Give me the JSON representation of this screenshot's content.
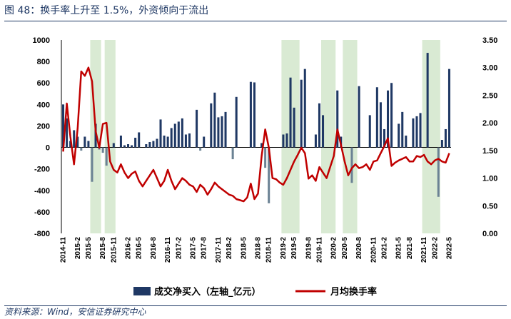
{
  "title": "图 48：换手率上升至 1.5%，外资倾向于流出",
  "source": "资料来源：Wind，安信证券研究中心",
  "colors": {
    "bar": "#1f3864",
    "bar_negative": "#6b8294",
    "line": "#c00000",
    "shade": "#d9ead3",
    "text": "#1f3864"
  },
  "chart_data": {
    "type": "bar+line",
    "x_labels": [
      "2014-11",
      "2015-2",
      "2015-5",
      "2015-8",
      "2015-11",
      "2016-2",
      "2016-5",
      "2016-8",
      "2016-11",
      "2017-2",
      "2017-5",
      "2017-8",
      "2017-11",
      "2018-2",
      "2018-5",
      "2018-8",
      "2018-11",
      "2019-2",
      "2019-5",
      "2019-8",
      "2019-11",
      "2020-2",
      "2020-5",
      "2020-8",
      "2020-11",
      "2021-2",
      "2021-5",
      "2021-8",
      "2021-11",
      "2022-2",
      "2022-5"
    ],
    "y_left": {
      "min": -800,
      "max": 1000,
      "ticks": [
        "-800",
        "-600",
        "-400",
        "-200",
        "0",
        "200",
        "400",
        "600",
        "800",
        "1000"
      ]
    },
    "y_right": {
      "min": 0,
      "max": 3.5,
      "ticks": [
        "0.00",
        "0.50",
        "1.00",
        "1.50",
        "2.00",
        "2.50",
        "3.00",
        "3.50"
      ]
    },
    "series": [
      {
        "name": "成交净买入（左轴_亿元）",
        "type": "bar",
        "axis": "left",
        "values": [
          400,
          270,
          60,
          160,
          100,
          -30,
          100,
          60,
          -320,
          220,
          -20,
          -50,
          -170,
          0,
          40,
          0,
          110,
          20,
          30,
          20,
          90,
          140,
          0,
          30,
          50,
          60,
          80,
          260,
          110,
          100,
          180,
          220,
          240,
          270,
          120,
          130,
          0,
          350,
          -30,
          100,
          0,
          410,
          510,
          280,
          290,
          330,
          0,
          -110,
          470,
          0,
          0,
          0,
          610,
          605,
          0,
          40,
          -190,
          -520,
          0,
          0,
          0,
          120,
          130,
          650,
          370,
          0,
          630,
          730,
          0,
          0,
          120,
          410,
          300,
          0,
          0,
          0,
          530,
          100,
          0,
          0,
          -330,
          0,
          570,
          0,
          0,
          300,
          0,
          560,
          420,
          170,
          530,
          600,
          0,
          220,
          330,
          110,
          0,
          270,
          290,
          320,
          0,
          880,
          0,
          0,
          -460,
          70,
          170,
          730
        ]
      },
      {
        "name": "月均换手率",
        "type": "line",
        "axis": "right",
        "values": [
          1.48,
          2.35,
          1.75,
          1.25,
          1.9,
          2.93,
          2.85,
          3.0,
          2.75,
          1.85,
          1.55,
          1.98,
          2.0,
          1.3,
          1.15,
          1.1,
          1.25,
          1.1,
          1.0,
          1.08,
          1.12,
          0.95,
          0.85,
          0.95,
          1.05,
          1.15,
          1.0,
          0.85,
          0.95,
          1.15,
          0.95,
          0.8,
          0.9,
          1.0,
          0.95,
          0.88,
          0.85,
          0.75,
          0.88,
          0.82,
          0.7,
          0.8,
          0.92,
          0.85,
          0.8,
          0.75,
          0.7,
          0.68,
          0.62,
          0.6,
          0.58,
          0.65,
          0.9,
          0.62,
          0.72,
          1.4,
          1.88,
          1.55,
          1.0,
          0.98,
          0.92,
          0.88,
          1.0,
          1.15,
          1.3,
          1.42,
          1.55,
          1.45,
          0.99,
          1.05,
          0.95,
          1.2,
          1.1,
          1.0,
          1.2,
          1.4,
          1.88,
          1.6,
          1.3,
          1.05,
          1.18,
          1.25,
          1.18,
          1.2,
          1.25,
          1.15,
          1.3,
          1.32,
          1.45,
          1.58,
          1.72,
          1.22,
          1.28,
          1.32,
          1.35,
          1.38,
          1.3,
          1.3,
          1.4,
          1.38,
          1.42,
          1.3,
          1.25,
          1.32,
          1.35,
          1.3,
          1.28,
          1.45
        ]
      }
    ],
    "shaded_periods": [
      [
        8,
        10
      ],
      [
        12,
        14
      ],
      [
        61,
        65
      ],
      [
        72,
        75
      ],
      [
        78,
        81
      ],
      [
        100,
        104
      ]
    ],
    "legend": [
      "成交净买入（左轴_亿元）",
      "月均换手率"
    ],
    "legend_position": "bottom"
  }
}
